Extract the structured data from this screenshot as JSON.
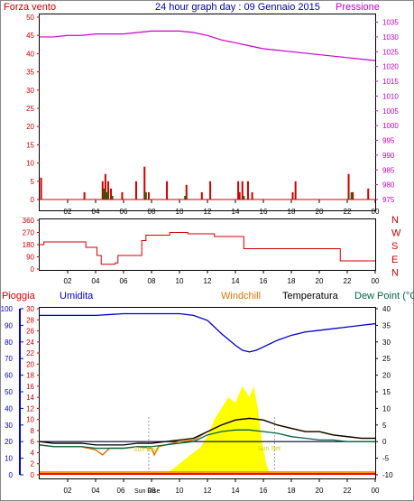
{
  "header": {
    "left_label": "Forza vento",
    "title": "24 hour graph day : 09 Gennaio 2015",
    "right_label": "Pressione"
  },
  "bottom_header": {
    "rain": "Pioggia",
    "humidity": "Umidita",
    "windchill": "Windchill",
    "temperature": "Temperatura",
    "dewpoint": "Dew Point (°C"
  },
  "hours": [
    "02",
    "04",
    "06",
    "08",
    "10",
    "12",
    "14",
    "16",
    "18",
    "20",
    "22",
    "00"
  ],
  "sun": {
    "rise": "Sun Rise",
    "set": "Sun Set",
    "rise_note": "Sun Rise"
  },
  "colors": {
    "wind": "#cc0000",
    "gust": "#007700",
    "pressure": "#cc00cc",
    "direction": "#cc0000",
    "humidity": "#0000cc",
    "temperature": "#000000",
    "dewpoint": "#006644",
    "windchill": "#dd7700",
    "solar": "#ffff00",
    "rain": "#ff0000"
  },
  "chart_data": [
    {
      "type": "line",
      "name": "wind-pressure",
      "x_ticks": [
        "02",
        "04",
        "06",
        "08",
        "10",
        "12",
        "14",
        "16",
        "18",
        "20",
        "22",
        "00"
      ],
      "y_left": {
        "label": "Forza vento",
        "ticks": [
          0,
          5,
          10,
          15,
          20,
          25,
          30,
          35,
          40,
          45,
          50
        ],
        "ylim": [
          0,
          50
        ]
      },
      "y_right": {
        "label": "Pressione",
        "ticks": [
          975,
          980,
          985,
          990,
          995,
          1000,
          1005,
          1010,
          1015,
          1020,
          1025,
          1030,
          1035
        ],
        "ylim": [
          975,
          1037
        ]
      },
      "pressure": [
        [
          0,
          1030
        ],
        [
          1,
          1030
        ],
        [
          2,
          1030.5
        ],
        [
          3,
          1030.5
        ],
        [
          4,
          1031
        ],
        [
          5,
          1031
        ],
        [
          6,
          1031
        ],
        [
          7,
          1031.5
        ],
        [
          8,
          1032
        ],
        [
          9,
          1032
        ],
        [
          10,
          1032
        ],
        [
          11,
          1031.5
        ],
        [
          12,
          1030.5
        ],
        [
          13,
          1029
        ],
        [
          14,
          1028
        ],
        [
          15,
          1027
        ],
        [
          16,
          1026
        ],
        [
          17,
          1025.5
        ],
        [
          18,
          1025
        ],
        [
          19,
          1024.5
        ],
        [
          20,
          1024
        ],
        [
          21,
          1023.5
        ],
        [
          22,
          1023
        ],
        [
          23,
          1022.5
        ],
        [
          24,
          1022
        ]
      ],
      "wind_bars": [
        [
          0.1,
          6
        ],
        [
          3.2,
          2
        ],
        [
          4.5,
          5
        ],
        [
          4.7,
          7
        ],
        [
          4.9,
          5
        ],
        [
          5.1,
          3
        ],
        [
          5.9,
          2
        ],
        [
          6.9,
          5
        ],
        [
          7.5,
          9
        ],
        [
          7.8,
          2
        ],
        [
          9.1,
          5
        ],
        [
          10.5,
          4
        ],
        [
          11.6,
          2
        ],
        [
          12.2,
          5
        ],
        [
          14.2,
          5
        ],
        [
          14.3,
          2
        ],
        [
          14.5,
          5
        ],
        [
          14.9,
          5
        ],
        [
          15.2,
          2
        ],
        [
          18.1,
          2
        ],
        [
          18.3,
          5
        ],
        [
          22.1,
          7
        ],
        [
          22.4,
          2
        ],
        [
          23.5,
          3
        ]
      ],
      "gust_bars": [
        [
          4.6,
          3
        ],
        [
          4.8,
          2
        ],
        [
          5.2,
          1
        ],
        [
          7.6,
          2
        ],
        [
          10.4,
          1
        ],
        [
          14.6,
          1
        ],
        [
          22.3,
          2
        ]
      ]
    },
    {
      "type": "line",
      "name": "wind-direction",
      "x_ticks": [
        "02",
        "04",
        "06",
        "08",
        "10",
        "12",
        "14",
        "16",
        "18",
        "20",
        "22",
        "00"
      ],
      "y_left": {
        "ticks": [
          0,
          90,
          180,
          270,
          360
        ],
        "ylim": [
          0,
          360
        ]
      },
      "y_right": {
        "labels": [
          "N",
          "W",
          "S",
          "E",
          "N"
        ]
      },
      "direction": [
        [
          0,
          180
        ],
        [
          0.3,
          180
        ],
        [
          0.3,
          200
        ],
        [
          3.3,
          200
        ],
        [
          3.3,
          160
        ],
        [
          4.1,
          160
        ],
        [
          4.1,
          100
        ],
        [
          4.4,
          100
        ],
        [
          4.4,
          35
        ],
        [
          5.4,
          35
        ],
        [
          5.4,
          45
        ],
        [
          5.6,
          45
        ],
        [
          5.6,
          100
        ],
        [
          7.3,
          100
        ],
        [
          7.3,
          210
        ],
        [
          7.6,
          210
        ],
        [
          7.6,
          250
        ],
        [
          9.3,
          250
        ],
        [
          9.3,
          270
        ],
        [
          10.6,
          270
        ],
        [
          10.6,
          260
        ],
        [
          12.5,
          260
        ],
        [
          12.5,
          240
        ],
        [
          14.6,
          240
        ],
        [
          14.6,
          150
        ],
        [
          19,
          150
        ],
        [
          19,
          150
        ],
        [
          21.5,
          150
        ],
        [
          21.5,
          60
        ],
        [
          24,
          60
        ]
      ]
    },
    {
      "type": "line",
      "name": "temperature-humidity-rain",
      "x_ticks": [
        "02",
        "04",
        "06",
        "08",
        "10",
        "12",
        "14",
        "16",
        "18",
        "20",
        "22",
        "00"
      ],
      "y_humidity": {
        "label": "Umidita",
        "ticks": [
          0,
          10,
          20,
          30,
          40,
          50,
          60,
          70,
          80,
          90,
          100
        ],
        "ylim": [
          0,
          100
        ]
      },
      "y_rain": {
        "label": "Pioggia",
        "ticks": [
          0,
          2,
          4,
          6,
          8,
          10,
          12,
          14,
          16,
          18,
          20,
          22,
          24,
          26,
          28,
          30
        ],
        "ylim": [
          0,
          30
        ]
      },
      "y_temp": {
        "label": "Temperatura",
        "ticks": [
          -10,
          -5,
          0,
          5,
          10,
          15,
          20,
          25,
          30,
          35,
          40
        ],
        "ylim": [
          -10,
          40
        ]
      },
      "humidity": [
        [
          0,
          96
        ],
        [
          2,
          96
        ],
        [
          4,
          96
        ],
        [
          6,
          97
        ],
        [
          8,
          97
        ],
        [
          10,
          97
        ],
        [
          11,
          96
        ],
        [
          12,
          93
        ],
        [
          13,
          85
        ],
        [
          14,
          78
        ],
        [
          14.5,
          75
        ],
        [
          15,
          74
        ],
        [
          15.5,
          75
        ],
        [
          16,
          77
        ],
        [
          17,
          81
        ],
        [
          18,
          84
        ],
        [
          19,
          86
        ],
        [
          20,
          87
        ],
        [
          21,
          88
        ],
        [
          22,
          89
        ],
        [
          23,
          90
        ],
        [
          24,
          91
        ]
      ],
      "temperature": [
        [
          0,
          0
        ],
        [
          1,
          -0.5
        ],
        [
          2,
          -0.5
        ],
        [
          3,
          -0.5
        ],
        [
          4,
          -1
        ],
        [
          5,
          -1
        ],
        [
          6,
          -1
        ],
        [
          7,
          -0.5
        ],
        [
          8,
          -0.5
        ],
        [
          9,
          0
        ],
        [
          10,
          0.5
        ],
        [
          11,
          1
        ],
        [
          12,
          3
        ],
        [
          13,
          5
        ],
        [
          14,
          6.5
        ],
        [
          15,
          7
        ],
        [
          16,
          6.5
        ],
        [
          17,
          5
        ],
        [
          18,
          4
        ],
        [
          19,
          3
        ],
        [
          20,
          3
        ],
        [
          21,
          2
        ],
        [
          22,
          1.5
        ],
        [
          23,
          1
        ],
        [
          24,
          1
        ]
      ],
      "dewpoint": [
        [
          0,
          -1
        ],
        [
          1,
          -1.5
        ],
        [
          2,
          -1.5
        ],
        [
          3,
          -1.5
        ],
        [
          4,
          -2
        ],
        [
          5,
          -2
        ],
        [
          6,
          -2
        ],
        [
          7,
          -1.5
        ],
        [
          8,
          -1.5
        ],
        [
          9,
          -1
        ],
        [
          10,
          -0.5
        ],
        [
          11,
          0
        ],
        [
          12,
          2
        ],
        [
          13,
          3
        ],
        [
          14,
          3.5
        ],
        [
          15,
          3.5
        ],
        [
          16,
          3
        ],
        [
          17,
          2.5
        ],
        [
          18,
          1.5
        ],
        [
          19,
          1
        ],
        [
          20,
          0.5
        ],
        [
          21,
          0.5
        ],
        [
          22,
          0
        ],
        [
          23,
          0
        ],
        [
          24,
          0
        ]
      ],
      "windchill": [
        [
          0,
          -1
        ],
        [
          1,
          -1.5
        ],
        [
          2,
          -1.5
        ],
        [
          3,
          -1.5
        ],
        [
          4,
          -2.5
        ],
        [
          4.5,
          -4
        ],
        [
          5,
          -2
        ],
        [
          6,
          -2
        ],
        [
          7,
          -1.5
        ],
        [
          8,
          -2
        ],
        [
          8.2,
          -4
        ],
        [
          8.5,
          -1.5
        ],
        [
          9,
          -1
        ],
        [
          10,
          0
        ],
        [
          11,
          0.5
        ],
        [
          12,
          3
        ],
        [
          13,
          5
        ],
        [
          14,
          6.5
        ],
        [
          15,
          7
        ],
        [
          16,
          6.5
        ],
        [
          17,
          5
        ],
        [
          18,
          4
        ],
        [
          19,
          3
        ],
        [
          20,
          3
        ],
        [
          21,
          2
        ],
        [
          22,
          1.5
        ],
        [
          23,
          1
        ],
        [
          24,
          1
        ]
      ],
      "solar": [
        [
          8.8,
          0
        ],
        [
          9.5,
          1
        ],
        [
          10.5,
          3
        ],
        [
          11,
          4
        ],
        [
          11.5,
          5
        ],
        [
          12,
          7
        ],
        [
          12.5,
          10
        ],
        [
          13,
          12
        ],
        [
          13.5,
          14
        ],
        [
          14,
          13
        ],
        [
          14.5,
          16
        ],
        [
          15,
          14
        ],
        [
          15.3,
          16
        ],
        [
          15.6,
          12
        ],
        [
          15.9,
          6
        ],
        [
          16.2,
          2
        ],
        [
          16.5,
          0
        ]
      ],
      "rain": [
        [
          0,
          0.3
        ],
        [
          24,
          0.3
        ]
      ],
      "sun_rise_hour": 7.8,
      "sun_set_hour": 16.8
    }
  ]
}
